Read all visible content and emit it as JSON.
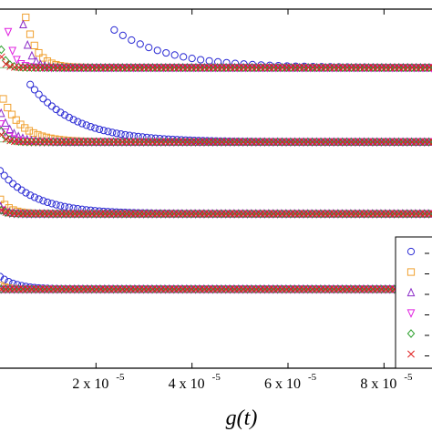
{
  "chart_data": {
    "type": "scatter",
    "xlabel": "g(t)",
    "xlim": [
      0,
      9e-05
    ],
    "ylim": [
      0,
      1
    ],
    "x_tick_labels": [
      {
        "value": 2e-05,
        "mantissa": "2 x 10",
        "exponent": "-5"
      },
      {
        "value": 4e-05,
        "mantissa": "4 x 10",
        "exponent": "-5"
      },
      {
        "value": 6e-05,
        "mantissa": "6 x 10",
        "exponent": "-5"
      },
      {
        "value": 8e-05,
        "mantissa": "8 x 10",
        "exponent": "-5"
      }
    ],
    "grid": false,
    "legend_position": "bottom-right",
    "panels": [
      {
        "baseline": 0.837,
        "series": [
          {
            "marker": "circle",
            "color": "#2b2bd4",
            "amp": 0.105,
            "start": 2.38e-05,
            "decay": 1.15e-05,
            "every": 2
          },
          {
            "marker": "square",
            "color": "#f0a030",
            "amp": 0.14,
            "start": 5.3e-06,
            "decay": 2.2e-06,
            "every": 1
          },
          {
            "marker": "triangle-up",
            "color": "#8b2bc8",
            "amp": 0.12,
            "start": 4.7e-06,
            "decay": 1.4e-06,
            "every": 1
          },
          {
            "marker": "triangle-down",
            "color": "#e020e0",
            "amp": 0.1,
            "start": 1.5e-06,
            "decay": 1.2e-06,
            "every": 1
          },
          {
            "marker": "diamond",
            "color": "#2ca02c",
            "amp": 0.05,
            "start": 0.0,
            "decay": 1e-06,
            "every": 1
          },
          {
            "marker": "x",
            "color": "#e02020",
            "amp": 0.03,
            "start": 0.0,
            "decay": 8e-07,
            "every": 1
          }
        ]
      },
      {
        "baseline": 0.63,
        "series": [
          {
            "marker": "circle",
            "color": "#2b2bd4",
            "amp": 0.16,
            "start": 6.3e-06,
            "decay": 9.5e-06,
            "every": 1
          },
          {
            "marker": "square",
            "color": "#f0a030",
            "amp": 0.12,
            "start": 6e-07,
            "decay": 4e-06,
            "every": 1
          },
          {
            "marker": "triangle-up",
            "color": "#8b2bc8",
            "amp": 0.08,
            "start": 1e-07,
            "decay": 2.2e-06,
            "every": 1
          },
          {
            "marker": "triangle-down",
            "color": "#e020e0",
            "amp": 0.05,
            "start": 0.0,
            "decay": 1.5e-06,
            "every": 1
          },
          {
            "marker": "diamond",
            "color": "#2ca02c",
            "amp": 0.03,
            "start": 0.0,
            "decay": 1.2e-06,
            "every": 1
          },
          {
            "marker": "x",
            "color": "#e02020",
            "amp": 0.02,
            "start": 0.0,
            "decay": 1e-06,
            "every": 1
          }
        ]
      },
      {
        "baseline": 0.43,
        "series": [
          {
            "marker": "circle",
            "color": "#2b2bd4",
            "amp": 0.12,
            "start": 0.0,
            "decay": 7.5e-06,
            "every": 1
          },
          {
            "marker": "square",
            "color": "#f0a030",
            "amp": 0.04,
            "start": 0.0,
            "decay": 2e-06,
            "every": 1
          },
          {
            "marker": "triangle-up",
            "color": "#8b2bc8",
            "amp": 0.02,
            "start": 0.0,
            "decay": 1.2e-06,
            "every": 1
          },
          {
            "marker": "triangle-down",
            "color": "#e020e0",
            "amp": 0.01,
            "start": 0.0,
            "decay": 1e-06,
            "every": 1
          },
          {
            "marker": "diamond",
            "color": "#2ca02c",
            "amp": 0.01,
            "start": 0.0,
            "decay": 1e-06,
            "every": 1
          },
          {
            "marker": "x",
            "color": "#e02020",
            "amp": 0.01,
            "start": 0.0,
            "decay": 1e-06,
            "every": 1
          }
        ]
      },
      {
        "baseline": 0.22,
        "series": [
          {
            "marker": "circle",
            "color": "#2b2bd4",
            "amp": 0.035,
            "start": 0.0,
            "decay": 3.5e-06,
            "every": 1
          },
          {
            "marker": "square",
            "color": "#f0a030",
            "amp": 0.01,
            "start": 0.0,
            "decay": 1.5e-06,
            "every": 1
          },
          {
            "marker": "triangle-up",
            "color": "#8b2bc8",
            "amp": 0.0,
            "start": 0.0,
            "decay": 1e-06,
            "every": 1
          },
          {
            "marker": "triangle-down",
            "color": "#e020e0",
            "amp": 0.0,
            "start": 0.0,
            "decay": 1e-06,
            "every": 1
          },
          {
            "marker": "diamond",
            "color": "#2ca02c",
            "amp": 0.0,
            "start": 0.0,
            "decay": 1e-06,
            "every": 1
          },
          {
            "marker": "x",
            "color": "#e02020",
            "amp": 0.0,
            "start": 0.0,
            "decay": 1e-06,
            "every": 1
          }
        ]
      }
    ],
    "legend_entries": [
      {
        "marker": "circle",
        "color": "#2b2bd4",
        "label": ""
      },
      {
        "marker": "square",
        "color": "#f0a030",
        "label": ""
      },
      {
        "marker": "triangle-up",
        "color": "#8b2bc8",
        "label": ""
      },
      {
        "marker": "triangle-down",
        "color": "#e020e0",
        "label": ""
      },
      {
        "marker": "diamond",
        "color": "#2ca02c",
        "label": ""
      },
      {
        "marker": "x",
        "color": "#e02020",
        "label": ""
      }
    ]
  }
}
